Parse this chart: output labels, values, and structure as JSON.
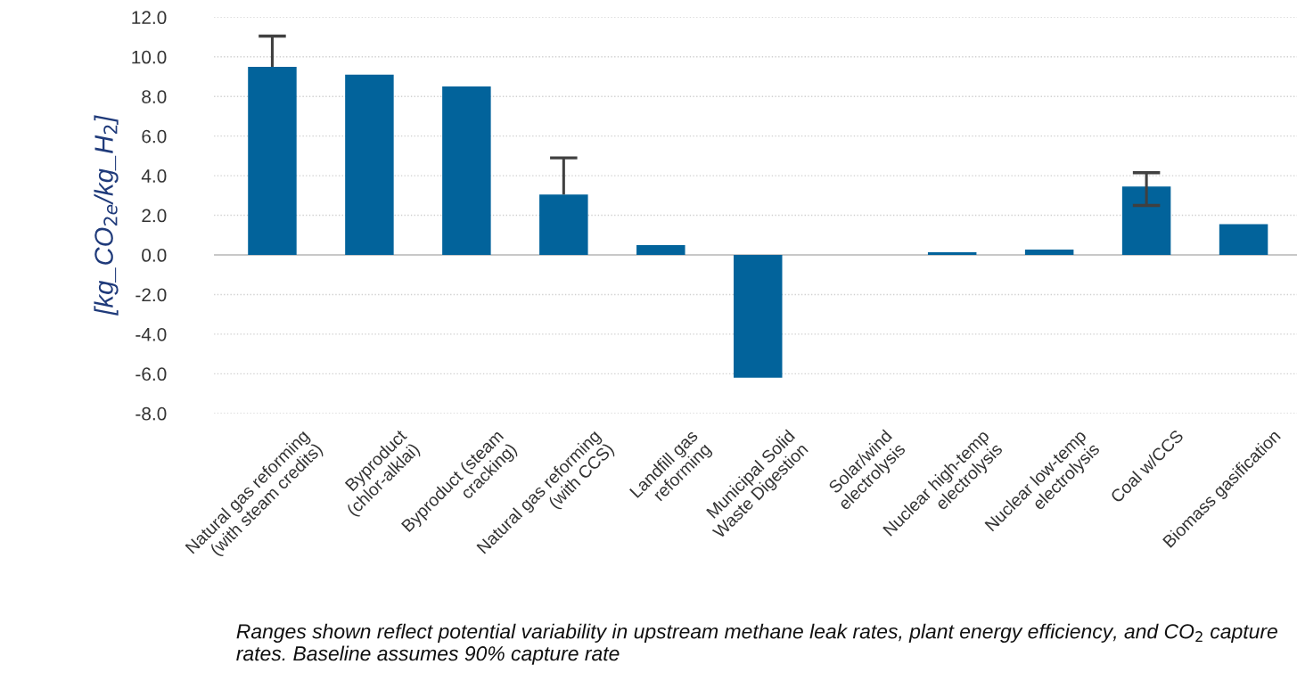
{
  "chart_data": {
    "type": "bar",
    "ylabel": "[kg_CO$_{2e}$/kg_H$_{2}$]",
    "categories": [
      "Natural gas reforming (with steam credits)",
      "Byproduct (chlor-alklai)",
      "Byproduct (steam cracking)",
      "Natural gas reforming (with CCS)",
      "Landfill gas reforming",
      "Municipal Solid Waste Digestion",
      "Solar/wind electrolysis",
      "Nuclear high-temp electrolysis",
      "Nuclear low-temp electrolysis",
      "Coal w/CCS",
      "Biomass gasification"
    ],
    "values": [
      9.5,
      9.1,
      8.5,
      3.05,
      0.5,
      -6.2,
      0,
      0.14,
      0.27,
      3.45,
      1.55
    ],
    "errors": [
      [
        9.5,
        11.05
      ],
      null,
      null,
      [
        3.05,
        4.9
      ],
      null,
      null,
      null,
      null,
      null,
      [
        2.5,
        4.15
      ],
      null
    ],
    "color": "#02639b",
    "ylim": [
      -8,
      12
    ],
    "yticks": [
      {
        "value": -8,
        "label": "-8.0"
      },
      {
        "value": -6,
        "label": "-6.0"
      },
      {
        "value": -4,
        "label": "-4.0"
      },
      {
        "value": -2,
        "label": "-2.0"
      },
      {
        "value": 0,
        "label": "0.0"
      },
      {
        "value": 2,
        "label": "2.0"
      },
      {
        "value": 4,
        "label": "4.0"
      },
      {
        "value": 6,
        "label": "6.0"
      },
      {
        "value": 8,
        "label": "8.0"
      },
      {
        "value": 10,
        "label": "10.0"
      },
      {
        "value": 12,
        "label": "12.0"
      }
    ],
    "grid": "y",
    "annotations": [
      "Ranges shown reflect potential variability in upstream methane leak rates, plant energy efficiency, and CO$_{2}$ capture rates. Baseline assumes 90% capture rate"
    ]
  }
}
